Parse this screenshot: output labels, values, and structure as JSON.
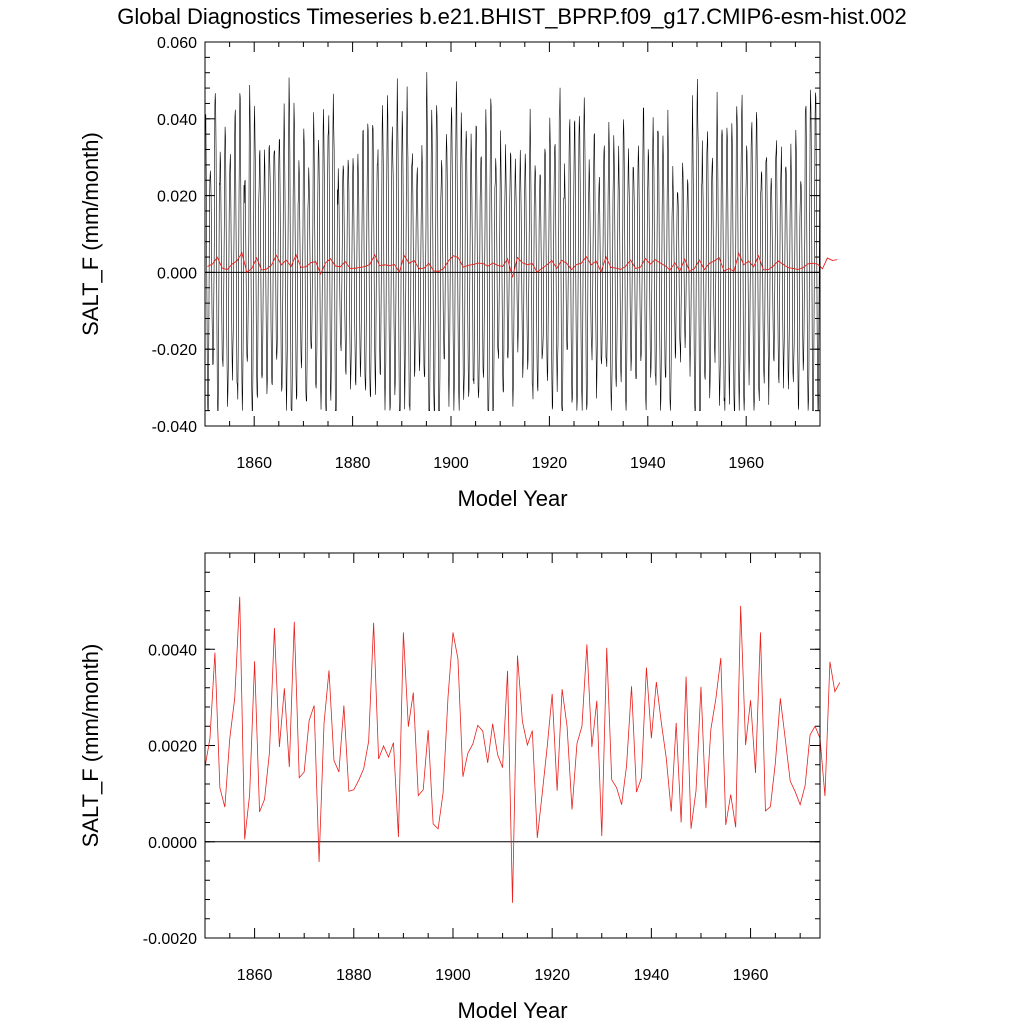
{
  "chart_data": [
    {
      "type": "line",
      "title": "Global Diagnostics Timeseries b.e21.BHIST_BPRP.f09_g17.CMIP6-esm-hist.002",
      "xlabel": "Model Year",
      "ylabel": "SALT_F (mm/month)",
      "xlim": [
        1850,
        1975
      ],
      "ylim": [
        -0.04,
        0.06
      ],
      "x_ticks": [
        1860,
        1880,
        1900,
        1920,
        1940,
        1960
      ],
      "x_tick_labels": [
        "1860",
        "1880",
        "1900",
        "1920",
        "1940",
        "1960"
      ],
      "y_ticks": [
        -0.04,
        -0.02,
        0.0,
        0.02,
        0.04,
        0.06
      ],
      "y_tick_labels": [
        "-0.040",
        "-0.020",
        "0.000",
        "0.020",
        "0.040",
        "0.060"
      ],
      "zero_line": 0,
      "series": [
        {
          "role": "monthly",
          "color": "#000000",
          "x_start": 1850,
          "x_step": 0.0833333,
          "seasonal_amplitude_range": [
            0.022,
            0.046
          ],
          "min_value": -0.036,
          "max_value": 0.055
        },
        {
          "role": "annual-mean",
          "color": "#e8201c",
          "same_as": "chart_data.1.series.0"
        }
      ]
    },
    {
      "type": "line",
      "title": "",
      "xlabel": "Model Year",
      "ylabel": "SALT_F (mm/month)",
      "xlim": [
        1850,
        1974
      ],
      "ylim": [
        -0.002,
        0.006
      ],
      "x_ticks": [
        1860,
        1880,
        1900,
        1920,
        1940,
        1960
      ],
      "x_tick_labels": [
        "1860",
        "1880",
        "1900",
        "1920",
        "1940",
        "1960"
      ],
      "y_ticks": [
        -0.002,
        0.0,
        0.002,
        0.004
      ],
      "y_tick_labels": [
        "-0.0020",
        "0.0000",
        "0.0020",
        "0.0040"
      ],
      "zero_line": 0,
      "series": [
        {
          "role": "annual-mean",
          "color": "#e8201c",
          "x_start": 1850,
          "x_step": 1,
          "values": [
            0.00155,
            0.00215,
            0.00393,
            0.00112,
            0.00072,
            0.00215,
            0.00299,
            0.00509,
            5e-05,
            0.00098,
            0.00375,
            0.00062,
            0.00088,
            0.00186,
            0.00444,
            0.00197,
            0.00319,
            0.00155,
            0.00457,
            0.00133,
            0.00145,
            0.00252,
            0.00283,
            -0.00042,
            0.00246,
            0.00356,
            0.00169,
            0.00145,
            0.00283,
            0.00105,
            0.00108,
            0.00128,
            0.00152,
            0.00209,
            0.00455,
            0.00172,
            0.00199,
            0.00176,
            0.00206,
            0.0001,
            0.00435,
            0.00239,
            0.0031,
            0.00096,
            0.00108,
            0.00232,
            0.00037,
            0.00027,
            0.00101,
            0.00301,
            0.00435,
            0.0038,
            0.00135,
            0.00184,
            0.00203,
            0.00242,
            0.0023,
            0.00164,
            0.00245,
            0.00181,
            0.00154,
            0.00355,
            -0.00127,
            0.00387,
            0.0025,
            0.00201,
            0.00231,
            8e-05,
            0.00101,
            0.00198,
            0.00307,
            0.00106,
            0.00317,
            0.0024,
            0.00067,
            0.00204,
            0.0024,
            0.0041,
            0.00197,
            0.00293,
            0.00012,
            0.00403,
            0.00129,
            0.00112,
            0.00077,
            0.00158,
            0.00323,
            0.00103,
            0.00133,
            0.00362,
            0.00215,
            0.00332,
            0.00248,
            0.00174,
            0.00063,
            0.00247,
            0.0004,
            0.00343,
            0.00027,
            0.00106,
            0.00322,
            0.0007,
            0.00234,
            0.00297,
            0.00382,
            0.00035,
            0.00098,
            0.0003,
            0.0049,
            0.00201,
            0.00294,
            0.00143,
            0.00435,
            0.00064,
            0.00073,
            0.00164,
            0.00298,
            0.00213,
            0.00126,
            0.00104,
            0.00077,
            0.00117,
            0.00222,
            0.0024,
            0.00215,
            0.00095,
            0.00374,
            0.00312,
            0.00331
          ]
        }
      ]
    }
  ]
}
